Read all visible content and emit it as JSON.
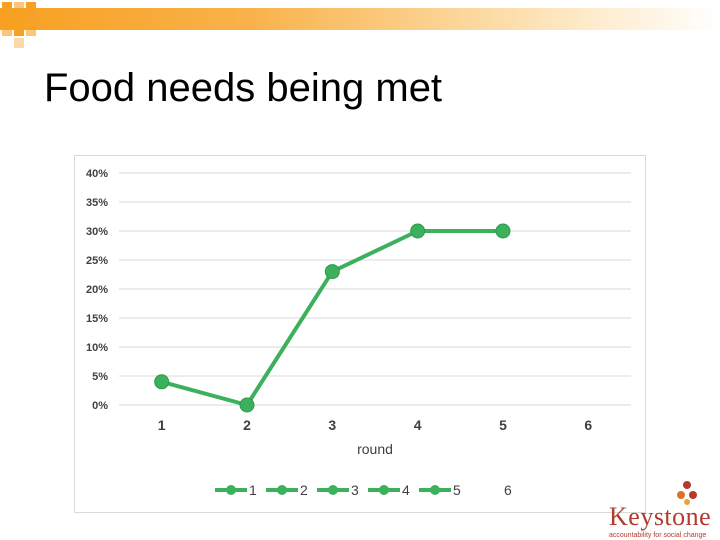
{
  "slide": {
    "title": "Food needs being met"
  },
  "logo": {
    "name": "Keystone",
    "tagline": "accountability for social change"
  },
  "colors": {
    "series": "#3cb05c",
    "grid": "#d9d9d9",
    "axis_text": "#404040",
    "accent": "#f7a021",
    "logo": "#b33a2c"
  },
  "chart_data": {
    "type": "line",
    "x": [
      "1",
      "2",
      "3",
      "4",
      "5",
      "6"
    ],
    "values": [
      0.04,
      0.0,
      0.23,
      0.3,
      0.3,
      null
    ],
    "ylim": [
      0,
      0.4
    ],
    "yticks": [
      "0%",
      "5%",
      "10%",
      "15%",
      "20%",
      "25%",
      "30%",
      "35%",
      "40%"
    ],
    "xlabel": "round",
    "ylabel": "",
    "grid": true,
    "legend_position": "bottom",
    "legend": [
      "1",
      "2",
      "3",
      "4",
      "5",
      "6"
    ]
  }
}
